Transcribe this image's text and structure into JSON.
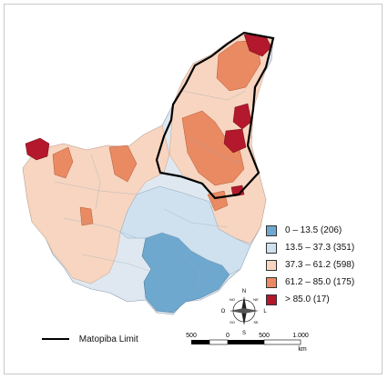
{
  "legend": {
    "items": [
      {
        "label": "0 – 13.5 (206)",
        "color": "#6fa8cf"
      },
      {
        "label": "13.5 – 37.3 (351)",
        "color": "#cfe1ee"
      },
      {
        "label": "37.3 – 61.2 (598)",
        "color": "#f7d5c0"
      },
      {
        "label": "61.2 – 85.0 (175)",
        "color": "#e98a62"
      },
      {
        "label": "> 85.0 (17)",
        "color": "#b3182c"
      }
    ]
  },
  "boundary_legend": {
    "label": "Matopiba Limit"
  },
  "scale_bar": {
    "labels": [
      "500",
      "0",
      "500",
      "1.000"
    ],
    "unit": "km"
  },
  "compass": {
    "n": "N",
    "s": "S",
    "o": "O",
    "l": "L",
    "no": "NO",
    "ne": "NE",
    "so": "SO",
    "se": "SE"
  }
}
